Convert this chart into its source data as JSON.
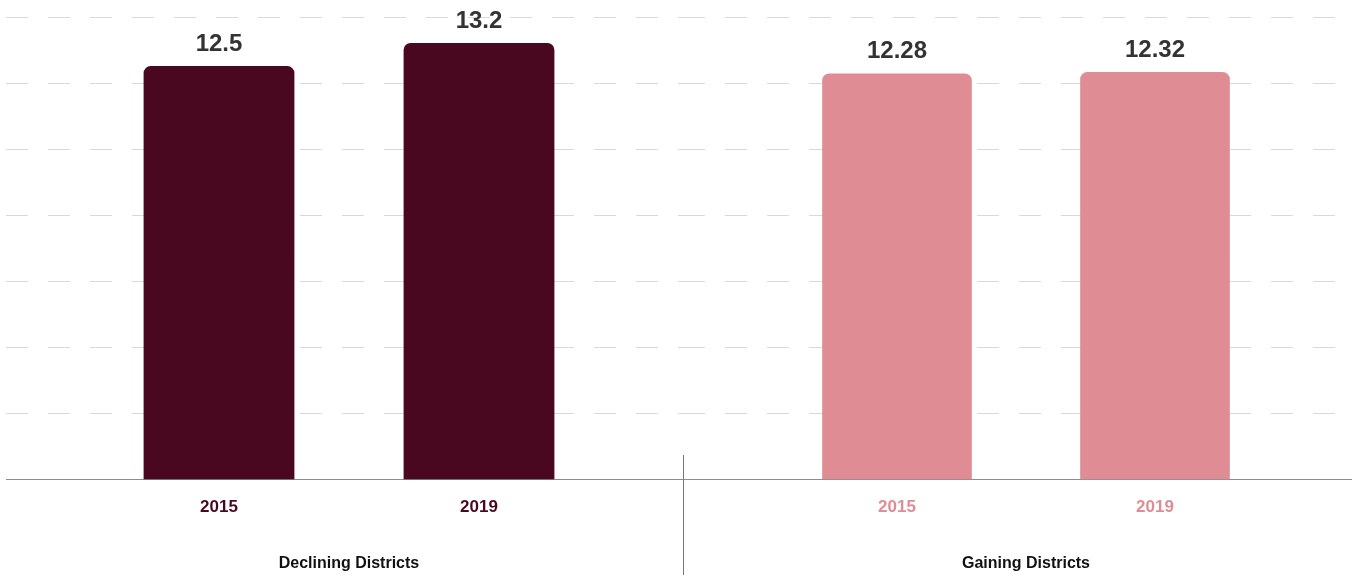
{
  "chart_data": [
    {
      "type": "bar",
      "categories": [
        "2015",
        "2019"
      ],
      "values": [
        12.5,
        13.2
      ],
      "color": "#4a0720",
      "xlabel": "Declining Districts",
      "data_labels": true,
      "grid": "y",
      "tick_labels": "x",
      "ylim": [
        0,
        14.5
      ],
      "yticks": [
        {
          "value": 2,
          "label": null
        },
        {
          "value": 4,
          "label": null
        },
        {
          "value": 6,
          "label": null
        },
        {
          "value": 8,
          "label": null
        },
        {
          "value": 10,
          "label": null
        },
        {
          "value": 12,
          "label": null
        },
        {
          "value": 14,
          "label": null
        }
      ]
    },
    {
      "type": "bar",
      "categories": [
        "2015",
        "2019"
      ],
      "values": [
        12.28,
        12.32
      ],
      "color": "#e08c94",
      "xlabel": "Gaining Districts",
      "data_labels": true,
      "grid": "y",
      "tick_labels": "x",
      "ylim": [
        0,
        14.5
      ],
      "yticks": [
        {
          "value": 2,
          "label": null
        },
        {
          "value": 4,
          "label": null
        },
        {
          "value": 6,
          "label": null
        },
        {
          "value": 8,
          "label": null
        },
        {
          "value": 10,
          "label": null
        },
        {
          "value": 12,
          "label": null
        },
        {
          "value": 14,
          "label": null
        }
      ]
    }
  ]
}
